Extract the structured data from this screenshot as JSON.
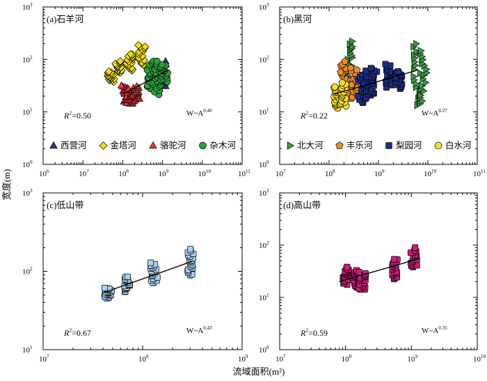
{
  "figure": {
    "ylabel": "宽度(m)",
    "xlabel": "流域面积(m²)"
  },
  "chart_data": [
    {
      "id": "a",
      "type": "scatter",
      "title": "(a)石羊河",
      "xscale": "log",
      "yscale": "log",
      "xlim_exp": [
        6,
        11
      ],
      "ylim_exp": [
        0,
        3
      ],
      "xticks": [
        {
          "b": "10",
          "e": "6"
        },
        {
          "b": "10",
          "e": "7"
        },
        {
          "b": "10",
          "e": "8"
        },
        {
          "b": "10",
          "e": "9"
        },
        {
          "b": "10",
          "e": "10"
        },
        {
          "b": "10",
          "e": "11"
        }
      ],
      "yticks": [
        {
          "b": "10",
          "e": "0"
        },
        {
          "b": "10",
          "e": "1"
        },
        {
          "b": "10",
          "e": "2"
        },
        {
          "b": "10",
          "e": "3"
        }
      ],
      "r2": {
        "pre": "R",
        "sup": "2",
        "post": "=0.50"
      },
      "law": {
        "base": "W~A",
        "exp": "0.40"
      },
      "legend": {
        "placement": "bottom",
        "items": [
          "西营河",
          "金塔河",
          "骆驼河",
          "杂木河"
        ]
      },
      "fit": {
        "x": [
          130000000.0,
          1400000000.0
        ],
        "y": [
          24,
          63
        ]
      },
      "series": [
        {
          "name": "西营河",
          "marker": "triangle",
          "color": "#2a3a8c",
          "clusters": [
            [
              1000000000.0,
              [
                28,
                90
              ]
            ]
          ]
        },
        {
          "name": "金塔河",
          "marker": "diamond",
          "color": "#f5e00a",
          "clusters": [
            [
              50000000.0,
              [
                38,
                58
              ]
            ],
            [
              80000000.0,
              [
                55,
                90
              ]
            ],
            [
              150000000.0,
              [
                62,
                130
              ]
            ],
            [
              300000000.0,
              [
                75,
                190
              ]
            ]
          ]
        },
        {
          "name": "骆驼河",
          "marker": "triangle",
          "color": "#e8343a",
          "clusters": [
            [
              110000000.0,
              [
                15,
                32
              ]
            ],
            [
              150000000.0,
              [
                14,
                28
              ]
            ],
            [
              220000000.0,
              [
                16,
                30
              ]
            ]
          ]
        },
        {
          "name": "杂木河",
          "marker": "circle",
          "color": "#2e9e3e",
          "clusters": [
            [
              500000000.0,
              [
                28,
                90
              ]
            ],
            [
              750000000.0,
              [
                22,
                90
              ]
            ],
            [
              1100000000.0,
              [
                38,
                80
              ]
            ]
          ]
        }
      ]
    },
    {
      "id": "b",
      "type": "scatter",
      "title": "(b)黑河",
      "xscale": "log",
      "yscale": "log",
      "xlim_exp": [
        7,
        11
      ],
      "ylim_exp": [
        0,
        3
      ],
      "xticks": [
        {
          "b": "10",
          "e": "7"
        },
        {
          "b": "10",
          "e": "8"
        },
        {
          "b": "10",
          "e": "9"
        },
        {
          "b": "10",
          "e": "10"
        },
        {
          "b": "10",
          "e": "11"
        }
      ],
      "yticks": [
        {
          "b": "10",
          "e": "0"
        },
        {
          "b": "10",
          "e": "1"
        },
        {
          "b": "10",
          "e": "2"
        },
        {
          "b": "10",
          "e": "3"
        }
      ],
      "r2": {
        "pre": "R",
        "sup": "2",
        "post": "=0.22"
      },
      "law": {
        "base": "W~A",
        "exp": "0.27"
      },
      "legend": {
        "placement": "bottom",
        "items": [
          "北大河",
          "丰乐河",
          "梨园河",
          "白水河"
        ]
      },
      "fit": {
        "x": [
          130000000.0,
          6000000000.0
        ],
        "y": [
          22,
          62
        ]
      },
      "series": [
        {
          "name": "北大河",
          "marker": "triangle-right",
          "color": "#3e9c42",
          "clusters": [
            [
              250000000.0,
              [
                40,
                220
              ]
            ],
            [
              6000000000.0,
              [
                13,
                200
              ]
            ],
            [
              8000000000.0,
              [
                14,
                150
              ]
            ]
          ]
        },
        {
          "name": "丰乐河",
          "marker": "pentagon",
          "color": "#ef8a25",
          "clusters": [
            [
              200000000.0,
              [
                20,
                90
              ]
            ],
            [
              320000000.0,
              [
                18,
                70
              ]
            ]
          ]
        },
        {
          "name": "梨园河",
          "marker": "square",
          "color": "#1e2f88",
          "clusters": [
            [
              450000000.0,
              [
                15,
                50
              ]
            ],
            [
              600000000.0,
              [
                18,
                60
              ]
            ],
            [
              800000000.0,
              [
                22,
                70
              ]
            ],
            [
              1600000000.0,
              [
                30,
                80
              ]
            ],
            [
              2600000000.0,
              [
                28,
                60
              ]
            ]
          ]
        },
        {
          "name": "白水河",
          "marker": "circle",
          "color": "#f7e02a",
          "clusters": [
            [
              140000000.0,
              [
                12,
                30
              ]
            ],
            [
              190000000.0,
              [
                13,
                35
              ]
            ]
          ]
        }
      ]
    },
    {
      "id": "c",
      "type": "scatter",
      "title": "(c)低山带",
      "xscale": "log",
      "yscale": "log",
      "xlim_exp": [
        7,
        9
      ],
      "ylim_exp": [
        1,
        3
      ],
      "xticks": [
        {
          "b": "10",
          "e": "7"
        },
        {
          "b": "10",
          "e": "8"
        },
        {
          "b": "10",
          "e": "9"
        }
      ],
      "yticks": [
        {
          "b": "10",
          "e": "1"
        },
        {
          "b": "10",
          "e": "2"
        },
        {
          "b": "10",
          "e": "3"
        }
      ],
      "r2": {
        "pre": "R",
        "sup": "2",
        "post": "=0.67"
      },
      "law": {
        "base": "W~A",
        "exp": "0.43"
      },
      "fit": {
        "x": [
          40000000.0,
          320000000.0
        ],
        "y": [
          53,
          135
        ]
      },
      "series": [
        {
          "name": "低山带",
          "marker": "square",
          "color": "#a8cdee",
          "clusters": [
            [
              45000000.0,
              [
                45,
                62
              ]
            ],
            [
              70000000.0,
              [
                55,
                85
              ]
            ],
            [
              130000000.0,
              [
                70,
                130
              ]
            ],
            [
              300000000.0,
              [
                88,
                190
              ]
            ]
          ]
        }
      ]
    },
    {
      "id": "d",
      "type": "scatter",
      "title": "(d)高山带",
      "xscale": "log",
      "yscale": "log",
      "xlim_exp": [
        7,
        10
      ],
      "ylim_exp": [
        0,
        3
      ],
      "xticks": [
        {
          "b": "10",
          "e": "7"
        },
        {
          "b": "10",
          "e": "8"
        },
        {
          "b": "10",
          "e": "9"
        },
        {
          "b": "10",
          "e": "10"
        }
      ],
      "yticks": [
        {
          "b": "10",
          "e": "0"
        },
        {
          "b": "10",
          "e": "1"
        },
        {
          "b": "10",
          "e": "2"
        },
        {
          "b": "10",
          "e": "3"
        }
      ],
      "r2": {
        "pre": "R",
        "sup": "2",
        "post": "=0.59"
      },
      "law": {
        "base": "W~A",
        "exp": "0.35"
      },
      "fit": {
        "x": [
          80000000.0,
          1300000000.0
        ],
        "y": [
          20,
          55
        ]
      },
      "series": [
        {
          "name": "高山带",
          "marker": "square",
          "color": "#d01a7a",
          "clusters": [
            [
              100000000.0,
              [
                18,
                38
              ]
            ],
            [
              140000000.0,
              [
                16,
                34
              ]
            ],
            [
              180000000.0,
              [
                14,
                30
              ]
            ],
            [
              550000000.0,
              [
                22,
                55
              ]
            ],
            [
              1100000000.0,
              [
                38,
                90
              ]
            ]
          ]
        }
      ]
    }
  ]
}
